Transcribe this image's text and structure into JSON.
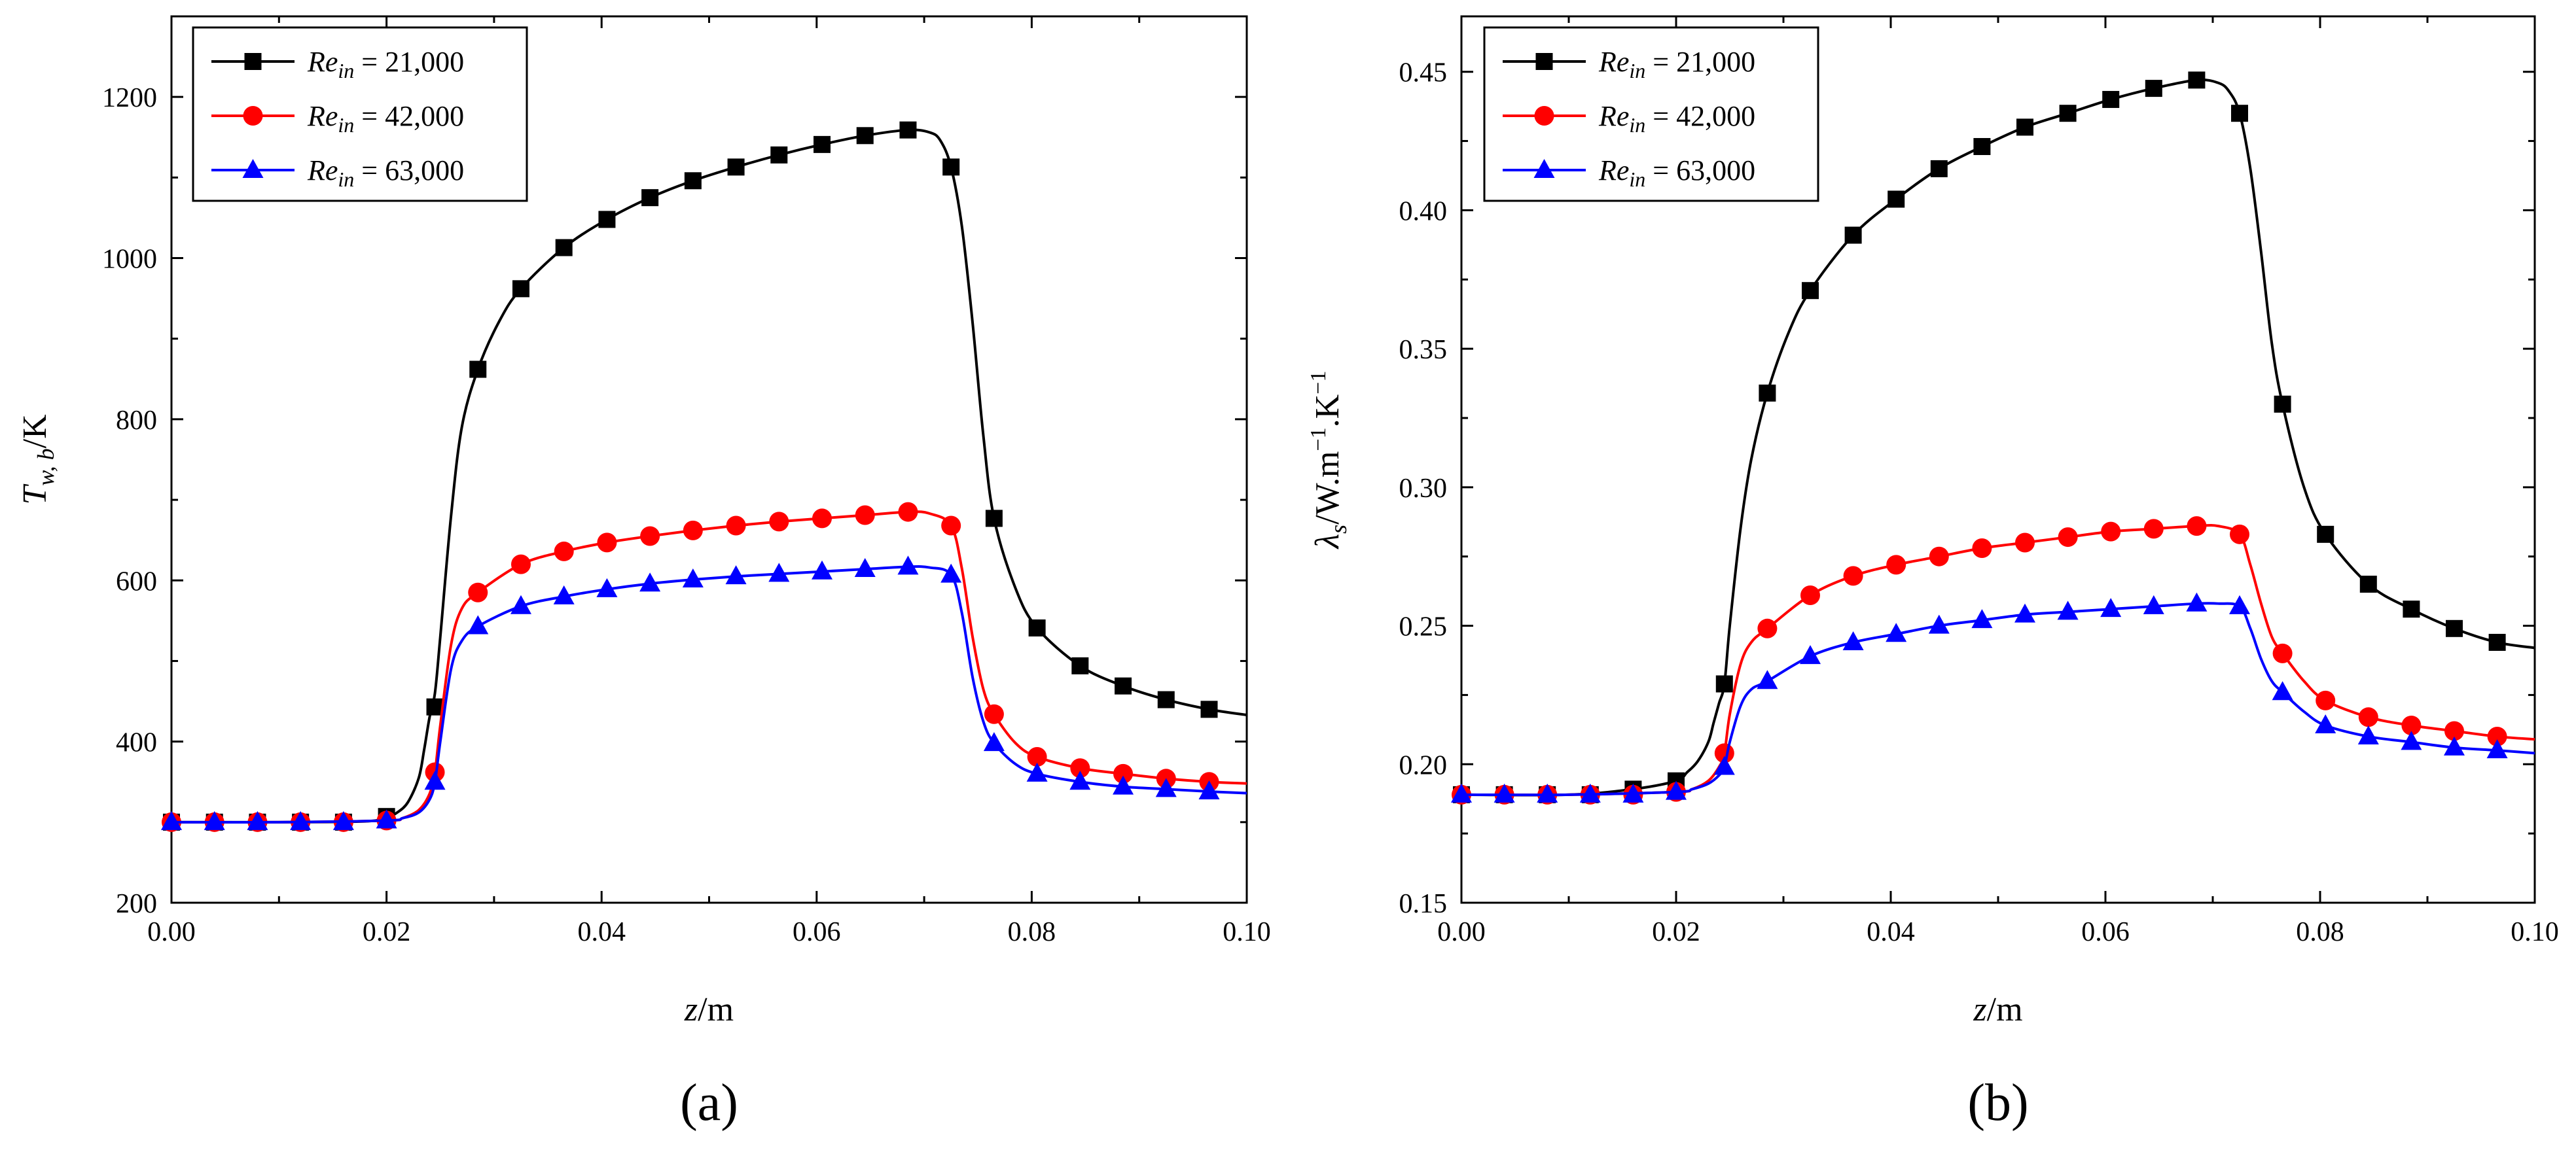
{
  "chart_data": [
    {
      "type": "line",
      "panel_label": "(a)",
      "xlabel": {
        "italic": "z",
        "rest": "/m"
      },
      "ylabel": {
        "italic": "T",
        "sub": "w, b",
        "rest": "/K"
      },
      "xlim": [
        0.0,
        0.1
      ],
      "ylim": [
        200,
        1300
      ],
      "x_ticks": [
        0.0,
        0.02,
        0.04,
        0.06,
        0.08,
        0.1
      ],
      "x_tick_labels": [
        "0.00",
        "0.02",
        "0.04",
        "0.06",
        "0.08",
        "0.10"
      ],
      "y_ticks": [
        200,
        400,
        600,
        800,
        1000,
        1200
      ],
      "y_tick_labels": [
        "200",
        "400",
        "600",
        "800",
        "1000",
        "1200"
      ],
      "grid": false,
      "legend_position": "top-left",
      "series": [
        {
          "name": "Re_in = 21,000",
          "legend": {
            "italic": "Re",
            "sub": "in",
            "rest": " = 21,000"
          },
          "color": "#000000",
          "marker": "square",
          "x": [
            0.0,
            0.004,
            0.008,
            0.012,
            0.016,
            0.02,
            0.0245,
            0.0285,
            0.0325,
            0.0365,
            0.0405,
            0.0445,
            0.0485,
            0.0525,
            0.0565,
            0.0605,
            0.0645,
            0.0685,
            0.0725,
            0.0765,
            0.0805,
            0.0845,
            0.0885,
            0.0925,
            0.0965
          ],
          "values": [
            300,
            300,
            300,
            300,
            300,
            307,
            443,
            862,
            962,
            1013,
            1048,
            1075,
            1096,
            1113,
            1128,
            1141,
            1152,
            1159,
            1113,
            677,
            541,
            494,
            469,
            452,
            440
          ],
          "curve_x": [
            0.0,
            0.01,
            0.018,
            0.02,
            0.021,
            0.022,
            0.023,
            0.0235,
            0.024,
            0.0245,
            0.025,
            0.026,
            0.027,
            0.0285,
            0.0305,
            0.0325,
            0.0365,
            0.0405,
            0.0445,
            0.0485,
            0.0525,
            0.0565,
            0.0605,
            0.0645,
            0.0685,
            0.0705,
            0.0715,
            0.0725,
            0.0735,
            0.0745,
            0.0755,
            0.0765,
            0.0785,
            0.0805,
            0.0845,
            0.0885,
            0.0925,
            0.0965,
            0.1
          ],
          "curve_y": [
            300,
            300,
            301,
            306,
            312,
            325,
            355,
            390,
            430,
            460,
            530,
            680,
            790,
            862,
            922,
            962,
            1013,
            1048,
            1075,
            1096,
            1113,
            1128,
            1141,
            1152,
            1159,
            1156,
            1146,
            1113,
            1040,
            920,
            780,
            677,
            590,
            541,
            494,
            469,
            452,
            440,
            433
          ]
        },
        {
          "name": "Re_in = 42,000",
          "legend": {
            "italic": "Re",
            "sub": "in",
            "rest": " = 42,000"
          },
          "color": "#ff0000",
          "marker": "circle",
          "x": [
            0.0,
            0.004,
            0.008,
            0.012,
            0.016,
            0.02,
            0.0245,
            0.0285,
            0.0325,
            0.0365,
            0.0405,
            0.0445,
            0.0485,
            0.0525,
            0.0565,
            0.0605,
            0.0645,
            0.0685,
            0.0725,
            0.0765,
            0.0805,
            0.0845,
            0.0885,
            0.0925,
            0.0965
          ],
          "values": [
            300,
            300,
            300,
            300,
            300,
            302,
            362,
            585,
            620,
            636,
            647,
            655,
            662,
            668,
            673,
            677,
            681,
            685,
            668,
            434,
            381,
            367,
            360,
            354,
            350
          ],
          "curve_x": [
            0.0,
            0.01,
            0.02,
            0.0215,
            0.023,
            0.024,
            0.0245,
            0.025,
            0.026,
            0.027,
            0.0285,
            0.0325,
            0.0365,
            0.0405,
            0.0445,
            0.0485,
            0.0525,
            0.0565,
            0.0605,
            0.0645,
            0.0685,
            0.0705,
            0.0725,
            0.0735,
            0.0745,
            0.0755,
            0.0765,
            0.0785,
            0.0805,
            0.0845,
            0.0885,
            0.0925,
            0.0965,
            0.1
          ],
          "curve_y": [
            300,
            300,
            302,
            305,
            315,
            335,
            362,
            420,
            520,
            565,
            585,
            620,
            636,
            647,
            655,
            662,
            668,
            673,
            677,
            681,
            685,
            683,
            668,
            615,
            530,
            465,
            434,
            398,
            381,
            367,
            360,
            354,
            350,
            348
          ]
        },
        {
          "name": "Re_in = 63,000",
          "legend": {
            "italic": "Re",
            "sub": "in",
            "rest": " = 63,000"
          },
          "color": "#0000ff",
          "marker": "triangle",
          "x": [
            0.0,
            0.004,
            0.008,
            0.012,
            0.016,
            0.02,
            0.0245,
            0.0285,
            0.0325,
            0.0365,
            0.0405,
            0.0445,
            0.0485,
            0.0525,
            0.0565,
            0.0605,
            0.0645,
            0.0685,
            0.0725,
            0.0765,
            0.0805,
            0.0845,
            0.0885,
            0.0925,
            0.0965
          ],
          "values": [
            300,
            300,
            300,
            300,
            300,
            302,
            350,
            543,
            568,
            580,
            589,
            596,
            601,
            605,
            608,
            611,
            614,
            617,
            607,
            398,
            360,
            350,
            344,
            341,
            338
          ],
          "curve_x": [
            0.0,
            0.01,
            0.02,
            0.0215,
            0.023,
            0.024,
            0.0245,
            0.025,
            0.026,
            0.027,
            0.0285,
            0.0325,
            0.0365,
            0.0405,
            0.0445,
            0.0485,
            0.0525,
            0.0565,
            0.0605,
            0.0645,
            0.0685,
            0.0705,
            0.0725,
            0.0735,
            0.0745,
            0.0755,
            0.0765,
            0.0785,
            0.0805,
            0.0845,
            0.0885,
            0.0925,
            0.0965,
            0.1
          ],
          "curve_y": [
            300,
            300,
            302,
            305,
            312,
            328,
            350,
            400,
            490,
            525,
            543,
            568,
            580,
            589,
            596,
            601,
            605,
            608,
            611,
            614,
            617,
            616,
            607,
            560,
            480,
            425,
            398,
            372,
            360,
            350,
            344,
            341,
            338,
            336
          ]
        }
      ]
    },
    {
      "type": "line",
      "panel_label": "(b)",
      "xlabel": {
        "italic": "z",
        "rest": "/m"
      },
      "ylabel": {
        "lambda": "λ",
        "sub": "s",
        "rest": "/W.m",
        "sup1": "−1",
        "rest2": ".K",
        "sup2": "−1"
      },
      "xlim": [
        0.0,
        0.1
      ],
      "ylim": [
        0.15,
        0.47
      ],
      "x_ticks": [
        0.0,
        0.02,
        0.04,
        0.06,
        0.08,
        0.1
      ],
      "x_tick_labels": [
        "0.00",
        "0.02",
        "0.04",
        "0.06",
        "0.08",
        "0.10"
      ],
      "y_ticks": [
        0.15,
        0.2,
        0.25,
        0.3,
        0.35,
        0.4,
        0.45
      ],
      "y_tick_labels": [
        "0.15",
        "0.20",
        "0.25",
        "0.30",
        "0.35",
        "0.40",
        "0.45"
      ],
      "grid": false,
      "legend_position": "top-left",
      "series": [
        {
          "name": "Re_in = 21,000",
          "legend": {
            "italic": "Re",
            "sub": "in",
            "rest": " = 21,000"
          },
          "color": "#000000",
          "marker": "square",
          "x": [
            0.0,
            0.004,
            0.008,
            0.012,
            0.016,
            0.02,
            0.0245,
            0.0285,
            0.0325,
            0.0365,
            0.0405,
            0.0445,
            0.0485,
            0.0525,
            0.0565,
            0.0605,
            0.0645,
            0.0685,
            0.0725,
            0.0765,
            0.0805,
            0.0845,
            0.0885,
            0.0925,
            0.0965
          ],
          "values": [
            0.189,
            0.189,
            0.189,
            0.189,
            0.191,
            0.194,
            0.229,
            0.334,
            0.371,
            0.391,
            0.404,
            0.415,
            0.423,
            0.43,
            0.435,
            0.44,
            0.444,
            0.447,
            0.435,
            0.33,
            0.283,
            0.265,
            0.256,
            0.249,
            0.244
          ],
          "curve_x": [
            0.0,
            0.01,
            0.016,
            0.02,
            0.021,
            0.022,
            0.023,
            0.0235,
            0.024,
            0.0245,
            0.025,
            0.026,
            0.027,
            0.0285,
            0.0305,
            0.0325,
            0.0365,
            0.0405,
            0.0445,
            0.0485,
            0.0525,
            0.0565,
            0.0605,
            0.0645,
            0.0685,
            0.0705,
            0.0715,
            0.0725,
            0.0735,
            0.0745,
            0.0755,
            0.0765,
            0.0785,
            0.0805,
            0.0845,
            0.0885,
            0.0925,
            0.0965,
            0.1
          ],
          "curve_y": [
            0.189,
            0.189,
            0.191,
            0.194,
            0.197,
            0.201,
            0.208,
            0.215,
            0.222,
            0.229,
            0.25,
            0.285,
            0.31,
            0.334,
            0.356,
            0.371,
            0.391,
            0.404,
            0.415,
            0.423,
            0.43,
            0.435,
            0.44,
            0.444,
            0.447,
            0.446,
            0.443,
            0.435,
            0.415,
            0.385,
            0.352,
            0.33,
            0.3,
            0.283,
            0.265,
            0.256,
            0.249,
            0.244,
            0.242
          ]
        },
        {
          "name": "Re_in = 42,000",
          "legend": {
            "italic": "Re",
            "sub": "in",
            "rest": " = 42,000"
          },
          "color": "#ff0000",
          "marker": "circle",
          "x": [
            0.0,
            0.004,
            0.008,
            0.012,
            0.016,
            0.02,
            0.0245,
            0.0285,
            0.0325,
            0.0365,
            0.0405,
            0.0445,
            0.0485,
            0.0525,
            0.0565,
            0.0605,
            0.0645,
            0.0685,
            0.0725,
            0.0765,
            0.0805,
            0.0845,
            0.0885,
            0.0925,
            0.0965
          ],
          "values": [
            0.189,
            0.189,
            0.189,
            0.189,
            0.189,
            0.19,
            0.204,
            0.249,
            0.261,
            0.268,
            0.272,
            0.275,
            0.278,
            0.28,
            0.282,
            0.284,
            0.285,
            0.286,
            0.283,
            0.24,
            0.223,
            0.217,
            0.214,
            0.212,
            0.21
          ],
          "curve_x": [
            0.0,
            0.01,
            0.02,
            0.0215,
            0.023,
            0.024,
            0.0245,
            0.025,
            0.026,
            0.027,
            0.0285,
            0.0325,
            0.0365,
            0.0405,
            0.0445,
            0.0485,
            0.0525,
            0.0565,
            0.0605,
            0.0645,
            0.0685,
            0.0705,
            0.0725,
            0.0735,
            0.0745,
            0.0755,
            0.0765,
            0.0785,
            0.0805,
            0.0845,
            0.0885,
            0.0925,
            0.0965,
            0.1
          ],
          "curve_y": [
            0.189,
            0.189,
            0.19,
            0.191,
            0.194,
            0.199,
            0.204,
            0.218,
            0.236,
            0.244,
            0.249,
            0.261,
            0.268,
            0.272,
            0.275,
            0.278,
            0.28,
            0.282,
            0.284,
            0.285,
            0.286,
            0.286,
            0.283,
            0.272,
            0.258,
            0.246,
            0.24,
            0.23,
            0.223,
            0.217,
            0.214,
            0.212,
            0.21,
            0.209
          ]
        },
        {
          "name": "Re_in = 63,000",
          "legend": {
            "italic": "Re",
            "sub": "in",
            "rest": " = 63,000"
          },
          "color": "#0000ff",
          "marker": "triangle",
          "x": [
            0.0,
            0.004,
            0.008,
            0.012,
            0.016,
            0.02,
            0.0245,
            0.0285,
            0.0325,
            0.0365,
            0.0405,
            0.0445,
            0.0485,
            0.0525,
            0.0565,
            0.0605,
            0.0645,
            0.0685,
            0.0725,
            0.0765,
            0.0805,
            0.0845,
            0.0885,
            0.0925,
            0.0965
          ],
          "values": [
            0.189,
            0.189,
            0.189,
            0.189,
            0.189,
            0.19,
            0.199,
            0.23,
            0.239,
            0.244,
            0.247,
            0.25,
            0.252,
            0.254,
            0.255,
            0.256,
            0.257,
            0.258,
            0.257,
            0.226,
            0.214,
            0.21,
            0.208,
            0.206,
            0.205
          ],
          "curve_x": [
            0.0,
            0.01,
            0.02,
            0.0215,
            0.023,
            0.024,
            0.0245,
            0.025,
            0.026,
            0.027,
            0.0285,
            0.0325,
            0.0365,
            0.0405,
            0.0445,
            0.0485,
            0.0525,
            0.0565,
            0.0605,
            0.0645,
            0.0685,
            0.0705,
            0.0725,
            0.0735,
            0.0745,
            0.0755,
            0.0765,
            0.0785,
            0.0805,
            0.0845,
            0.0885,
            0.0925,
            0.0965,
            0.1
          ],
          "curve_y": [
            0.189,
            0.189,
            0.19,
            0.191,
            0.193,
            0.196,
            0.199,
            0.208,
            0.221,
            0.227,
            0.23,
            0.239,
            0.244,
            0.247,
            0.25,
            0.252,
            0.254,
            0.255,
            0.256,
            0.257,
            0.258,
            0.258,
            0.257,
            0.249,
            0.238,
            0.23,
            0.226,
            0.219,
            0.214,
            0.21,
            0.208,
            0.206,
            0.205,
            0.204
          ]
        }
      ]
    }
  ]
}
